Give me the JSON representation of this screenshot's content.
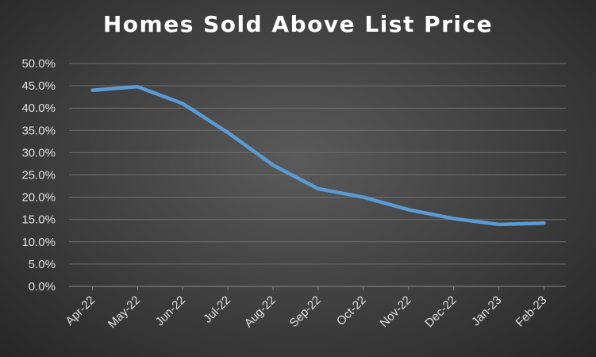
{
  "chart_data": {
    "type": "line",
    "title": "Homes Sold Above List Price",
    "xlabel": "",
    "ylabel": "",
    "categories": [
      "Apr-22",
      "May-22",
      "Jun-22",
      "Jul-22",
      "Aug-22",
      "Sep-22",
      "Oct-22",
      "Nov-22",
      "Dec-22",
      "Jan-23",
      "Feb-23"
    ],
    "series": [
      {
        "values": [
          44.0,
          44.8,
          41.0,
          34.5,
          27.2,
          21.9,
          20.0,
          17.2,
          15.2,
          13.9,
          14.2
        ]
      }
    ],
    "ylim": [
      0,
      50
    ],
    "yticks": [
      "0.0%",
      "5.0%",
      "10.0%",
      "15.0%",
      "20.0%",
      "25.0%",
      "30.0%",
      "35.0%",
      "40.0%",
      "45.0%",
      "50.0%"
    ],
    "grid": true,
    "legend": "none",
    "colors": {
      "line": "#5b9bd5",
      "grid": "#6e6e6e",
      "text": "#e0e0e0"
    }
  }
}
